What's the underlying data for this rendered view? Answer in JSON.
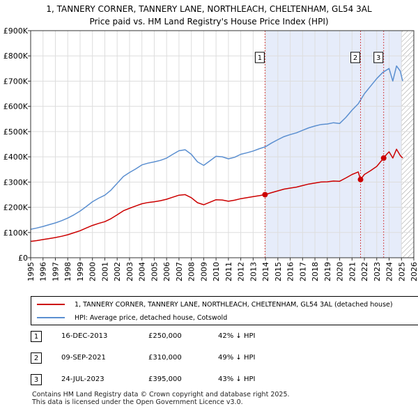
{
  "title_line1": "1, TANNERY CORNER, TANNERY LANE, NORTHLEACH, CHELTENHAM, GL54 3AL",
  "title_line2": "Price paid vs. HM Land Registry's House Price Index (HPI)",
  "colors": {
    "price_line": "#cc0000",
    "hpi_line": "#5b8fd0",
    "shade": "#e6ecfa",
    "marker_dash": "#cc0000",
    "hatch": "#999999",
    "grid": "#dddddd"
  },
  "chart_data": {
    "type": "line",
    "ylim": [
      0,
      900000
    ],
    "xlim": [
      1995.0,
      2026.0
    ],
    "y_ticks": [
      0,
      100000,
      200000,
      300000,
      400000,
      500000,
      600000,
      700000,
      800000,
      900000
    ],
    "y_tick_labels": [
      "£0",
      "£100K",
      "£200K",
      "£300K",
      "£400K",
      "£500K",
      "£600K",
      "£700K",
      "£800K",
      "£900K"
    ],
    "x_ticks": [
      1995,
      1996,
      1997,
      1998,
      1999,
      2000,
      2001,
      2002,
      2003,
      2004,
      2005,
      2006,
      2007,
      2008,
      2009,
      2010,
      2011,
      2012,
      2013,
      2014,
      2015,
      2016,
      2017,
      2018,
      2019,
      2020,
      2021,
      2022,
      2023,
      2024,
      2025,
      2026
    ],
    "x_tick_labels": [
      "1995",
      "1996",
      "1997",
      "1998",
      "1999",
      "2000",
      "2001",
      "2002",
      "2003",
      "2004",
      "2005",
      "2006",
      "2007",
      "2008",
      "2009",
      "2010",
      "2011",
      "2012",
      "2013",
      "2014",
      "2015",
      "2016",
      "2017",
      "2018",
      "2019",
      "2020",
      "2021",
      "2022",
      "2023",
      "2024",
      "2025",
      "2026"
    ],
    "shaded_from": 2013.96,
    "hatched_from": 2025.0,
    "series": [
      {
        "name": "1, TANNERY CORNER, TANNERY LANE, NORTHLEACH, CHELTENHAM, GL54 3AL (detached house)",
        "color": "#cc0000",
        "x": [
          1995.0,
          1995.5,
          1996.0,
          1996.5,
          1997.0,
          1997.5,
          1998.0,
          1998.5,
          1999.0,
          1999.5,
          2000.0,
          2000.5,
          2001.0,
          2001.5,
          2002.0,
          2002.5,
          2003.0,
          2003.5,
          2004.0,
          2004.5,
          2005.0,
          2005.5,
          2006.0,
          2006.5,
          2007.0,
          2007.5,
          2008.0,
          2008.5,
          2009.0,
          2009.5,
          2010.0,
          2010.5,
          2011.0,
          2011.5,
          2012.0,
          2012.5,
          2013.0,
          2013.5,
          2013.96,
          2014.5,
          2015.0,
          2015.5,
          2016.0,
          2016.5,
          2017.0,
          2017.5,
          2018.0,
          2018.5,
          2019.0,
          2019.5,
          2020.0,
          2020.5,
          2021.0,
          2021.5,
          2021.69,
          2022.0,
          2022.5,
          2023.0,
          2023.56,
          2023.8,
          2024.0,
          2024.3,
          2024.6,
          2024.9,
          2025.1
        ],
        "values": [
          65000,
          68000,
          72000,
          76000,
          80000,
          85000,
          91000,
          99000,
          107000,
          118000,
          128000,
          136000,
          143000,
          155000,
          170000,
          186000,
          196000,
          205000,
          214000,
          219000,
          222000,
          226000,
          232000,
          240000,
          248000,
          250000,
          238000,
          218000,
          210000,
          220000,
          230000,
          229000,
          224000,
          228000,
          234000,
          238000,
          242000,
          246000,
          250000,
          258000,
          265000,
          272000,
          276000,
          280000,
          286000,
          292000,
          296000,
          300000,
          301000,
          304000,
          303000,
          316000,
          330000,
          340000,
          310000,
          330000,
          345000,
          362000,
          395000,
          410000,
          420000,
          395000,
          430000,
          405000,
          395000
        ]
      },
      {
        "name": "HPI: Average price, detached house, Cotswold",
        "color": "#5b8fd0",
        "x": [
          1995.0,
          1995.5,
          1996.0,
          1996.5,
          1997.0,
          1997.5,
          1998.0,
          1998.5,
          1999.0,
          1999.5,
          2000.0,
          2000.5,
          2001.0,
          2001.5,
          2002.0,
          2002.5,
          2003.0,
          2003.5,
          2004.0,
          2004.5,
          2005.0,
          2005.5,
          2006.0,
          2006.5,
          2007.0,
          2007.5,
          2008.0,
          2008.5,
          2009.0,
          2009.5,
          2010.0,
          2010.5,
          2011.0,
          2011.5,
          2012.0,
          2012.5,
          2013.0,
          2013.5,
          2014.0,
          2014.5,
          2015.0,
          2015.5,
          2016.0,
          2016.5,
          2017.0,
          2017.5,
          2018.0,
          2018.5,
          2019.0,
          2019.5,
          2020.0,
          2020.5,
          2021.0,
          2021.5,
          2022.0,
          2022.5,
          2023.0,
          2023.5,
          2024.0,
          2024.3,
          2024.6,
          2024.9,
          2025.1
        ],
        "values": [
          113000,
          118000,
          124000,
          131000,
          138000,
          147000,
          157000,
          170000,
          185000,
          203000,
          222000,
          236000,
          248000,
          268000,
          295000,
          322000,
          338000,
          352000,
          368000,
          375000,
          380000,
          386000,
          395000,
          410000,
          424000,
          428000,
          410000,
          380000,
          366000,
          384000,
          402000,
          400000,
          392000,
          398000,
          410000,
          416000,
          423000,
          432000,
          440000,
          455000,
          468000,
          480000,
          488000,
          495000,
          505000,
          515000,
          522000,
          528000,
          530000,
          535000,
          532000,
          556000,
          585000,
          610000,
          650000,
          680000,
          710000,
          735000,
          750000,
          700000,
          760000,
          740000,
          700000
        ]
      }
    ],
    "sale_markers": [
      {
        "label": "1",
        "x": 2013.96,
        "value": 250000
      },
      {
        "label": "2",
        "x": 2021.69,
        "value": 310000
      },
      {
        "label": "3",
        "x": 2023.56,
        "value": 395000
      }
    ]
  },
  "legend": {
    "price_label": "1, TANNERY CORNER, TANNERY LANE, NORTHLEACH, CHELTENHAM, GL54 3AL (detached house)",
    "hpi_label": "HPI: Average price, detached house, Cotswold"
  },
  "sales": [
    {
      "num": "1",
      "date": "16-DEC-2013",
      "price": "£250,000",
      "hpi": "42% ↓ HPI"
    },
    {
      "num": "2",
      "date": "09-SEP-2021",
      "price": "£310,000",
      "hpi": "49% ↓ HPI"
    },
    {
      "num": "3",
      "date": "24-JUL-2023",
      "price": "£395,000",
      "hpi": "43% ↓ HPI"
    }
  ],
  "footer_line1": "Contains HM Land Registry data © Crown copyright and database right 2025.",
  "footer_line2": "This data is licensed under the Open Government Licence v3.0."
}
